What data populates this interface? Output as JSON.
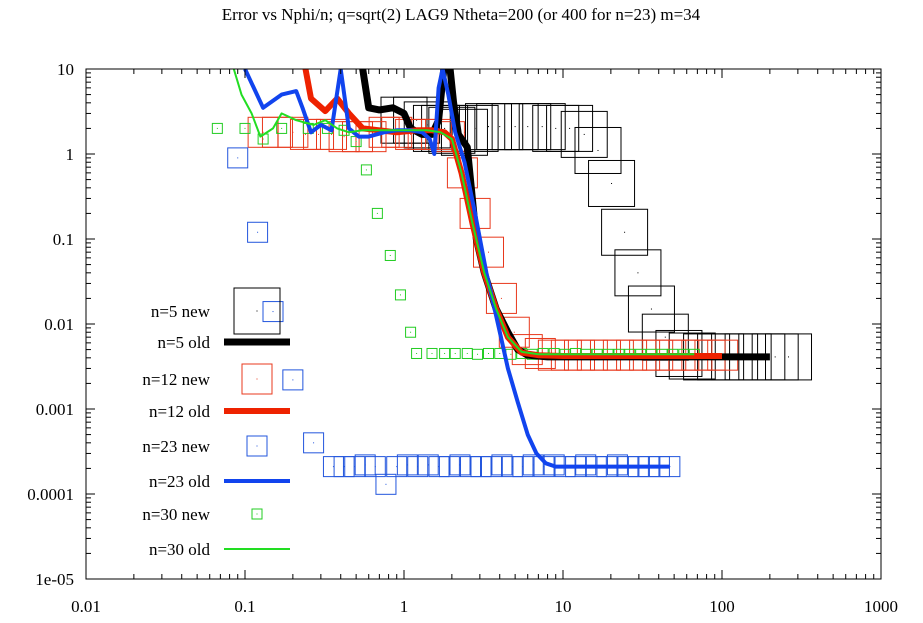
{
  "chart_data": {
    "type": "scatter",
    "title": "Error vs Nphi/n; q=sqrt(2) LAG9 Ntheta=200 (or 400 for n=23) m=34",
    "xlabel": "",
    "ylabel": "",
    "xscale": "log",
    "yscale": "log",
    "xlim": [
      0.01,
      1000
    ],
    "ylim": [
      1e-05,
      10
    ],
    "x_tick_labels": [
      "0.01",
      "0.1",
      "1",
      "10",
      "100",
      "1000"
    ],
    "y_tick_labels": [
      "1e-05",
      "0.0001",
      "0.001",
      "0.01",
      "0.1",
      "1",
      "10"
    ],
    "grid": false,
    "legend_position": "left",
    "series": [
      {
        "name": "n=5 new",
        "style": "boxes",
        "color": "#000000",
        "points": [
          [
            1.0,
            2.5
          ],
          [
            1.2,
            2.5
          ],
          [
            1.4,
            2.2
          ],
          [
            1.6,
            2.0
          ],
          [
            1.8,
            2.0
          ],
          [
            2.0,
            1.9
          ],
          [
            2.4,
            1.8
          ],
          [
            2.8,
            2.0
          ],
          [
            3.4,
            2.1
          ],
          [
            4.0,
            2.1
          ],
          [
            5.0,
            2.1
          ],
          [
            6.0,
            2.1
          ],
          [
            7.4,
            2.1
          ],
          [
            9.0,
            2.0
          ],
          [
            11.0,
            2.0
          ],
          [
            13.6,
            1.7
          ],
          [
            16.6,
            1.1
          ],
          [
            20.2,
            0.45
          ],
          [
            24.4,
            0.12
          ],
          [
            29.6,
            0.04
          ],
          [
            36.0,
            0.015
          ],
          [
            44.0,
            0.007
          ],
          [
            53.6,
            0.0045
          ],
          [
            65.0,
            0.0042
          ],
          [
            80.0,
            0.0041
          ],
          [
            98.0,
            0.0041
          ],
          [
            120.0,
            0.0041
          ],
          [
            146.0,
            0.0041
          ],
          [
            178.0,
            0.0041
          ],
          [
            216.0,
            0.0041
          ],
          [
            262.0,
            0.0041
          ]
        ]
      },
      {
        "name": "n=5 old",
        "style": "line",
        "color": "#000000",
        "points": [
          [
            0.55,
            10
          ],
          [
            0.6,
            3.5
          ],
          [
            0.7,
            3.3
          ],
          [
            0.85,
            3.5
          ],
          [
            1.0,
            3.0
          ],
          [
            1.1,
            2.0
          ],
          [
            1.3,
            1.7
          ],
          [
            1.5,
            1.7
          ],
          [
            1.65,
            2.5
          ],
          [
            1.78,
            10
          ],
          [
            1.95,
            10
          ],
          [
            2.05,
            4.0
          ],
          [
            2.2,
            1.7
          ],
          [
            2.5,
            1.2
          ],
          [
            2.65,
            0.4
          ],
          [
            2.85,
            0.1
          ],
          [
            3.2,
            0.04
          ],
          [
            3.8,
            0.015
          ],
          [
            4.5,
            0.008
          ],
          [
            5.2,
            0.005
          ],
          [
            6.0,
            0.0043
          ],
          [
            8.0,
            0.0041
          ],
          [
            20.0,
            0.0041
          ],
          [
            100.0,
            0.0041
          ],
          [
            200.0,
            0.0041
          ]
        ]
      },
      {
        "name": "n=12 new",
        "style": "boxes",
        "color": "#e8381c",
        "points": [
          [
            0.13,
            1.8
          ],
          [
            0.16,
            1.8
          ],
          [
            0.2,
            1.8
          ],
          [
            0.24,
            1.7
          ],
          [
            0.29,
            1.7
          ],
          [
            0.35,
            1.7
          ],
          [
            0.42,
            1.6
          ],
          [
            0.51,
            1.6
          ],
          [
            0.62,
            1.6
          ],
          [
            0.75,
            1.8
          ],
          [
            0.9,
            1.8
          ],
          [
            1.1,
            1.7
          ],
          [
            1.32,
            1.7
          ],
          [
            1.6,
            1.7
          ],
          [
            1.93,
            1.6
          ],
          [
            2.33,
            0.6
          ],
          [
            2.8,
            0.2
          ],
          [
            3.4,
            0.07
          ],
          [
            4.1,
            0.02
          ],
          [
            4.94,
            0.008
          ],
          [
            5.96,
            0.005
          ],
          [
            7.2,
            0.0045
          ],
          [
            8.7,
            0.0043
          ],
          [
            10.5,
            0.0043
          ],
          [
            12.7,
            0.0043
          ],
          [
            15.3,
            0.0043
          ],
          [
            18.5,
            0.0043
          ],
          [
            22.3,
            0.0043
          ],
          [
            27.0,
            0.0043
          ],
          [
            32.6,
            0.0043
          ],
          [
            39.4,
            0.0043
          ],
          [
            47.6,
            0.0043
          ],
          [
            57.5,
            0.0043
          ],
          [
            69.5,
            0.0043
          ],
          [
            84.0,
            0.0043
          ],
          [
            101.0,
            0.0043
          ]
        ]
      },
      {
        "name": "n=12 old",
        "style": "line",
        "color": "#ee2200",
        "points": [
          [
            0.24,
            10
          ],
          [
            0.26,
            4.5
          ],
          [
            0.32,
            3.2
          ],
          [
            0.38,
            4.5
          ],
          [
            0.45,
            3.0
          ],
          [
            0.55,
            2.0
          ],
          [
            0.7,
            1.9
          ],
          [
            0.9,
            1.8
          ],
          [
            1.2,
            1.9
          ],
          [
            1.5,
            1.9
          ],
          [
            1.8,
            1.8
          ],
          [
            2.0,
            1.5
          ],
          [
            2.3,
            0.6
          ],
          [
            2.7,
            0.15
          ],
          [
            3.2,
            0.04
          ],
          [
            3.8,
            0.015
          ],
          [
            4.5,
            0.007
          ],
          [
            5.5,
            0.0046
          ],
          [
            7.0,
            0.0043
          ],
          [
            10.0,
            0.0042
          ],
          [
            30.0,
            0.0042
          ],
          [
            100.0,
            0.0042
          ]
        ]
      },
      {
        "name": "n=23 new",
        "style": "boxes",
        "color": "#2255dd",
        "points": [
          [
            0.09,
            0.9
          ],
          [
            0.12,
            0.12
          ],
          [
            0.15,
            0.014
          ],
          [
            0.2,
            0.0022
          ],
          [
            0.27,
            0.0004
          ],
          [
            0.36,
            0.00021
          ],
          [
            0.42,
            0.00021
          ],
          [
            0.49,
            0.00021
          ],
          [
            0.57,
            0.00022
          ],
          [
            0.66,
            0.00021
          ],
          [
            0.77,
            0.00013
          ],
          [
            0.9,
            0.00021
          ],
          [
            1.05,
            0.00022
          ],
          [
            1.22,
            0.00021
          ],
          [
            1.42,
            0.00022
          ],
          [
            1.66,
            0.00021
          ],
          [
            1.93,
            0.00021
          ],
          [
            2.25,
            0.00022
          ],
          [
            2.62,
            0.00021
          ],
          [
            3.05,
            0.00021
          ],
          [
            3.55,
            0.00021
          ],
          [
            4.13,
            0.00022
          ],
          [
            4.8,
            0.00021
          ],
          [
            5.6,
            0.00021
          ],
          [
            6.5,
            0.00022
          ],
          [
            7.6,
            0.00021
          ],
          [
            8.8,
            0.00022
          ],
          [
            10.3,
            0.00021
          ],
          [
            12.0,
            0.00021
          ],
          [
            13.9,
            0.00022
          ],
          [
            16.2,
            0.00021
          ],
          [
            18.9,
            0.00021
          ],
          [
            22.0,
            0.00022
          ],
          [
            25.6,
            0.00021
          ],
          [
            29.8,
            0.00021
          ],
          [
            34.7,
            0.00021
          ],
          [
            40.4,
            0.00021
          ],
          [
            47.0,
            0.00021
          ]
        ]
      },
      {
        "name": "n=23 old",
        "style": "line",
        "color": "#1144ee",
        "points": [
          [
            0.1,
            10
          ],
          [
            0.13,
            3.5
          ],
          [
            0.17,
            5.0
          ],
          [
            0.21,
            5.5
          ],
          [
            0.23,
            3.5
          ],
          [
            0.26,
            1.8
          ],
          [
            0.3,
            2.2
          ],
          [
            0.35,
            1.9
          ],
          [
            0.4,
            10
          ],
          [
            0.45,
            2.0
          ],
          [
            0.52,
            1.6
          ],
          [
            0.6,
            1.6
          ],
          [
            0.75,
            1.8
          ],
          [
            0.9,
            1.9
          ],
          [
            1.1,
            1.9
          ],
          [
            1.3,
            1.8
          ],
          [
            1.45,
            1.5
          ],
          [
            1.55,
            1.0
          ],
          [
            1.65,
            6.0
          ],
          [
            1.75,
            10
          ],
          [
            1.9,
            5.0
          ],
          [
            2.1,
            1.8
          ],
          [
            2.4,
            0.8
          ],
          [
            2.8,
            0.2
          ],
          [
            3.3,
            0.04
          ],
          [
            3.9,
            0.01
          ],
          [
            4.5,
            0.003
          ],
          [
            5.2,
            0.0012
          ],
          [
            6.0,
            0.0005
          ],
          [
            6.8,
            0.0003
          ],
          [
            7.8,
            0.00023
          ],
          [
            9.0,
            0.00021
          ],
          [
            15.0,
            0.00021
          ],
          [
            30.0,
            0.00021
          ],
          [
            47.0,
            0.00021
          ]
        ]
      },
      {
        "name": "n=30 new",
        "style": "boxes",
        "color": "#22cc22",
        "points": [
          [
            0.067,
            2.0
          ],
          [
            0.1,
            2.0
          ],
          [
            0.13,
            1.5
          ],
          [
            0.17,
            2.0
          ],
          [
            0.25,
            2.0
          ],
          [
            0.33,
            2.0
          ],
          [
            0.42,
            1.9
          ],
          [
            0.5,
            1.4
          ],
          [
            0.58,
            0.65
          ],
          [
            0.68,
            0.2
          ],
          [
            0.82,
            0.064
          ],
          [
            0.95,
            0.022
          ],
          [
            1.1,
            0.008
          ],
          [
            1.2,
            0.0045
          ],
          [
            1.5,
            0.0045
          ],
          [
            1.8,
            0.0045
          ],
          [
            2.1,
            0.0045
          ],
          [
            2.5,
            0.0045
          ],
          [
            2.9,
            0.0044
          ],
          [
            3.4,
            0.0045
          ],
          [
            4.0,
            0.0045
          ],
          [
            4.7,
            0.0044
          ],
          [
            5.5,
            0.0045
          ],
          [
            6.4,
            0.0044
          ],
          [
            7.5,
            0.0045
          ],
          [
            8.8,
            0.0045
          ],
          [
            10.3,
            0.0044
          ],
          [
            12.0,
            0.0045
          ],
          [
            14.0,
            0.0044
          ],
          [
            16.4,
            0.0044
          ],
          [
            19.2,
            0.0044
          ],
          [
            22.5,
            0.0044
          ],
          [
            26.3,
            0.0044
          ],
          [
            30.8,
            0.0044
          ],
          [
            36.0,
            0.0044
          ],
          [
            42.0,
            0.0044
          ],
          [
            49.0,
            0.0044
          ],
          [
            57.5,
            0.0044
          ],
          [
            67.0,
            0.0044
          ]
        ]
      },
      {
        "name": "n=30 old",
        "style": "line",
        "color": "#22dd22",
        "points": [
          [
            0.085,
            10
          ],
          [
            0.095,
            5.0
          ],
          [
            0.11,
            3.0
          ],
          [
            0.125,
            1.6
          ],
          [
            0.15,
            2.0
          ],
          [
            0.17,
            3.0
          ],
          [
            0.21,
            2.5
          ],
          [
            0.27,
            2.2
          ],
          [
            0.32,
            2.5
          ],
          [
            0.38,
            2.0
          ],
          [
            0.45,
            1.8
          ],
          [
            0.55,
            1.9
          ],
          [
            0.7,
            1.9
          ],
          [
            0.9,
            1.9
          ],
          [
            1.1,
            1.9
          ],
          [
            1.4,
            1.9
          ],
          [
            1.7,
            1.8
          ],
          [
            2.0,
            1.5
          ],
          [
            2.3,
            0.6
          ],
          [
            2.7,
            0.15
          ],
          [
            3.2,
            0.04
          ],
          [
            3.8,
            0.015
          ],
          [
            4.5,
            0.007
          ],
          [
            5.5,
            0.0047
          ],
          [
            7.0,
            0.0044
          ],
          [
            10.0,
            0.0044
          ],
          [
            30.0,
            0.0044
          ],
          [
            67.0,
            0.0044
          ]
        ]
      }
    ]
  }
}
